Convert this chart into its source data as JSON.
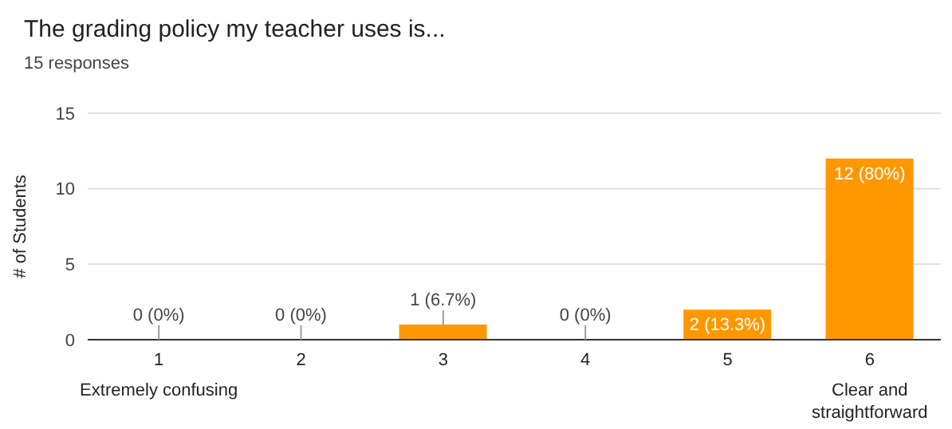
{
  "chart_data": {
    "type": "bar",
    "title": "The grading policy my teacher uses is...",
    "subtitle": "15 responses",
    "ylabel": "# of Students",
    "categories": [
      "1",
      "2",
      "3",
      "4",
      "5",
      "6"
    ],
    "values": [
      0,
      0,
      1,
      0,
      2,
      12
    ],
    "value_labels": [
      "0 (0%)",
      "0 (0%)",
      "1 (6.7%)",
      "0 (0%)",
      "2 (13.3%)",
      "12 (80%)"
    ],
    "color": "#ff9800",
    "ylim": [
      0,
      15
    ],
    "yticks": [
      0,
      5,
      10,
      15
    ],
    "grid": "y",
    "annotations": [
      "Extremely confusing",
      "Clear and straightforward"
    ]
  }
}
